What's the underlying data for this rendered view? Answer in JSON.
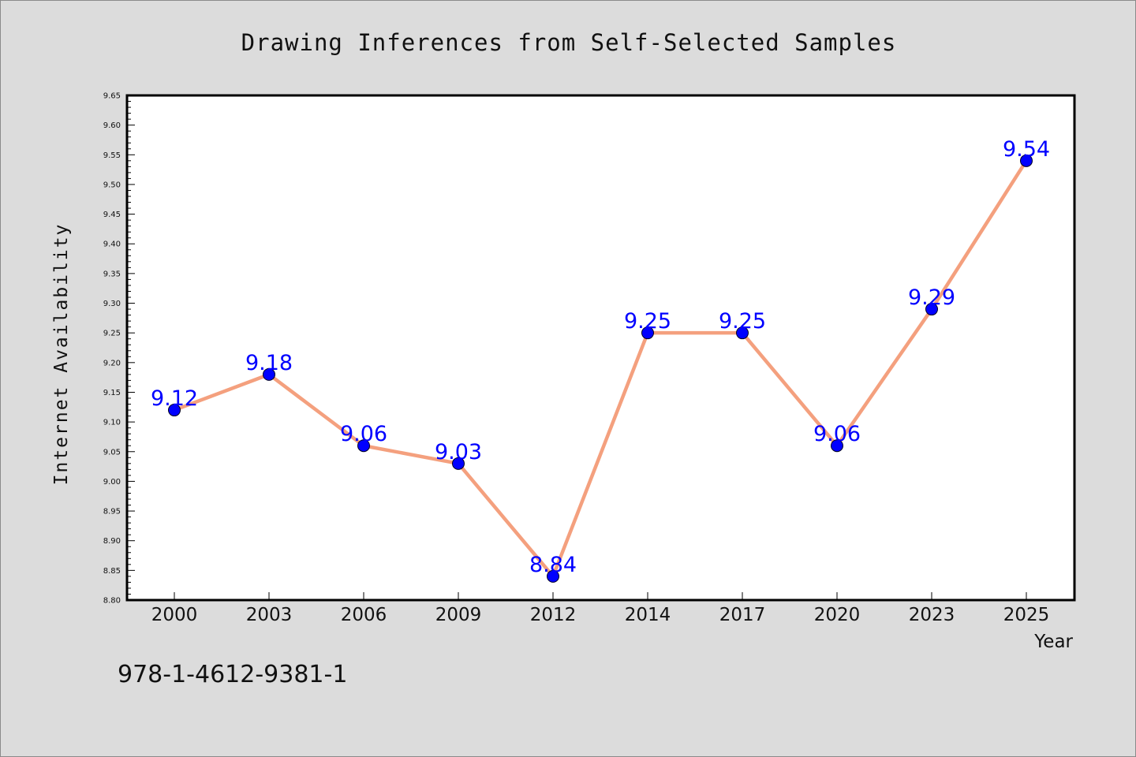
{
  "chart_data": {
    "type": "line",
    "title": "Drawing Inferences from Self-Selected Samples",
    "xlabel": "Year",
    "ylabel": "Internet Availability",
    "categories": [
      "2000",
      "2003",
      "2006",
      "2009",
      "2012",
      "2014",
      "2017",
      "2020",
      "2023",
      "2025"
    ],
    "series": [
      {
        "values": [
          9.12,
          9.18,
          9.06,
          9.03,
          8.84,
          9.25,
          9.25,
          9.06,
          9.29,
          9.54
        ]
      }
    ],
    "data_labels": [
      "9.12",
      "9.18",
      "9.06",
      "9.03",
      "8.84",
      "9.25",
      "9.25",
      "9.06",
      "9.29",
      "9.54"
    ],
    "ylim": [
      8.8,
      9.65
    ],
    "yticks": [
      "8.80",
      "8.85",
      "8.90",
      "8.95",
      "9.00",
      "9.05",
      "9.10",
      "9.15",
      "9.20",
      "9.25",
      "9.30",
      "9.35",
      "9.40",
      "9.45",
      "9.50",
      "9.55",
      "9.60",
      "9.65"
    ],
    "grid": false,
    "colors": {
      "line": "#f4a07e",
      "marker": "#0000ff",
      "label": "#0000ff",
      "background": "#dcdcdc",
      "plot_background": "#ffffff"
    }
  },
  "footer": {
    "isbn": "978-1-4612-9381-1"
  }
}
